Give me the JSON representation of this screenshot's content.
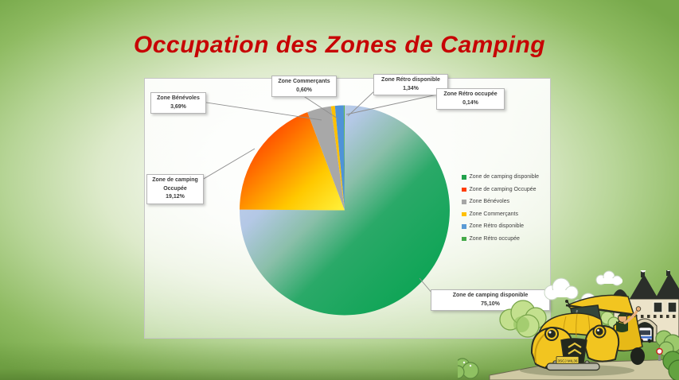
{
  "slide": {
    "title": "Occupation des Zones de Camping",
    "title_color": "#c70404",
    "background_green": "#77a94a"
  },
  "chart_data": {
    "type": "pie",
    "title": "Occupation des Zones de Camping",
    "legend_position": "right",
    "start_angle_deg": 0,
    "direction": "clockwise",
    "values_unit": "%",
    "slices": [
      {
        "label": "Zone de camping disponible",
        "value": 75.1,
        "pct_label": "75,10%",
        "swatch": "#21a14b",
        "fill": {
          "stops": [
            {
              "o": 0,
              "c": "#cdd7f0"
            },
            {
              "o": 0.3,
              "c": "#b4c8e6"
            },
            {
              "o": 0.45,
              "c": "#8abfa9"
            },
            {
              "o": 0.6,
              "c": "#2aa968"
            },
            {
              "o": 1,
              "c": "#00a24c"
            }
          ]
        }
      },
      {
        "label": "Zone de camping Occupée",
        "value": 19.12,
        "pct_label": "19,12%",
        "swatch": "#ff3d00",
        "fill": {
          "stops": [
            {
              "o": 0,
              "c": "#ff1400"
            },
            {
              "o": 0.35,
              "c": "#ff6a00"
            },
            {
              "o": 0.7,
              "c": "#ffc800"
            },
            {
              "o": 1,
              "c": "#fff23c"
            }
          ]
        }
      },
      {
        "label": "Zone  Bénévoles",
        "value": 3.69,
        "pct_label": "3,69%",
        "swatch": "#a6a6a6",
        "fill": {
          "solid": "#a8a8a8"
        }
      },
      {
        "label": "Zone Commerçants",
        "value": 0.6,
        "pct_label": "0,60%",
        "swatch": "#ffc000",
        "fill": {
          "solid": "#ffc000"
        }
      },
      {
        "label": "Zone Rétro disponible",
        "value": 1.34,
        "pct_label": "1,34%",
        "swatch": "#5b9bd5",
        "fill": {
          "solid": "#4f93d8"
        }
      },
      {
        "label": "Zone Rétro occupée",
        "value": 0.14,
        "pct_label": "0,14%",
        "swatch": "#45aa49",
        "fill": {
          "solid": "#55b24e"
        }
      }
    ]
  },
  "illustration": {
    "plate": "3SCJ MIL36"
  }
}
